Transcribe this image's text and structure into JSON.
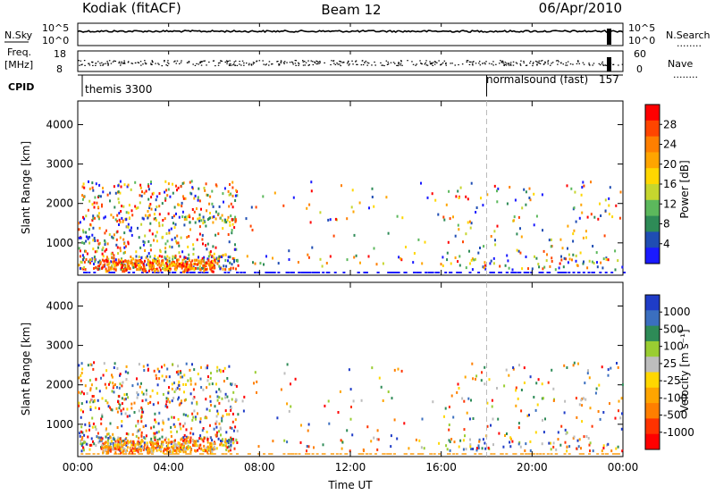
{
  "header": {
    "station": "Kodiak (fitACF)",
    "beam": "Beam 12",
    "date": "06/Apr/2010"
  },
  "left_labels": {
    "nsky": "N.Sky",
    "freq_line1": "Freq.",
    "freq_line2": "[MHz]",
    "cpid": "CPID"
  },
  "right_labels": {
    "nsearch": "N.Search",
    "nave": "Nave",
    "dots": "........"
  },
  "noise_panel": {
    "left_ticks": [
      "10^5",
      "10^0"
    ],
    "right_ticks": [
      "10^5",
      "10^0"
    ]
  },
  "freq_panel": {
    "left_ticks": [
      "18",
      "8"
    ],
    "right_ticks": [
      "60",
      "0"
    ]
  },
  "cpid_panel": {
    "segments": [
      {
        "name": "themis 3300",
        "start": 0.0
      },
      {
        "name": "normalsound (fast)",
        "id": "157",
        "start": 18.0
      }
    ]
  },
  "colors": {
    "power_scale": [
      "#1a1aff",
      "#1f4db3",
      "#2e8b57",
      "#5cb85c",
      "#c6d62e",
      "#ffd700",
      "#ffa500",
      "#ff7f00",
      "#ff4500",
      "#ff0000"
    ],
    "velocity_scale": [
      "#1f3cc7",
      "#3b6fbf",
      "#2e8b57",
      "#9acd32",
      "#bdbdbd",
      "#ffd700",
      "#ffa500",
      "#ff7f00",
      "#ff3300",
      "#ff0000"
    ]
  },
  "chart_data": [
    {
      "type": "heatmap",
      "panel": "power",
      "ylabel": "Slant Range [km]",
      "ylim": [
        180,
        4600
      ],
      "yticks": [
        "1000",
        "2000",
        "3000",
        "4000"
      ],
      "xlim": [
        0,
        24
      ],
      "colorbar": {
        "label": "Power [dB]",
        "ticks": [
          "4",
          "8",
          "12",
          "16",
          "20",
          "24",
          "28"
        ]
      }
    },
    {
      "type": "heatmap",
      "panel": "velocity",
      "ylabel": "Slant Range [km]",
      "ylim": [
        180,
        4600
      ],
      "yticks": [
        "1000",
        "2000",
        "3000",
        "4000"
      ],
      "xlim": [
        0,
        24
      ],
      "xticks": [
        "00:00",
        "04:00",
        "08:00",
        "12:00",
        "16:00",
        "20:00",
        "00:00"
      ],
      "xlabel": "Time UT",
      "colorbar": {
        "label": "Velocity [m s⁻¹]",
        "ticks": [
          "1000",
          "500",
          "100",
          "25",
          "-25",
          "-100",
          "-500",
          "-1000"
        ]
      }
    }
  ]
}
